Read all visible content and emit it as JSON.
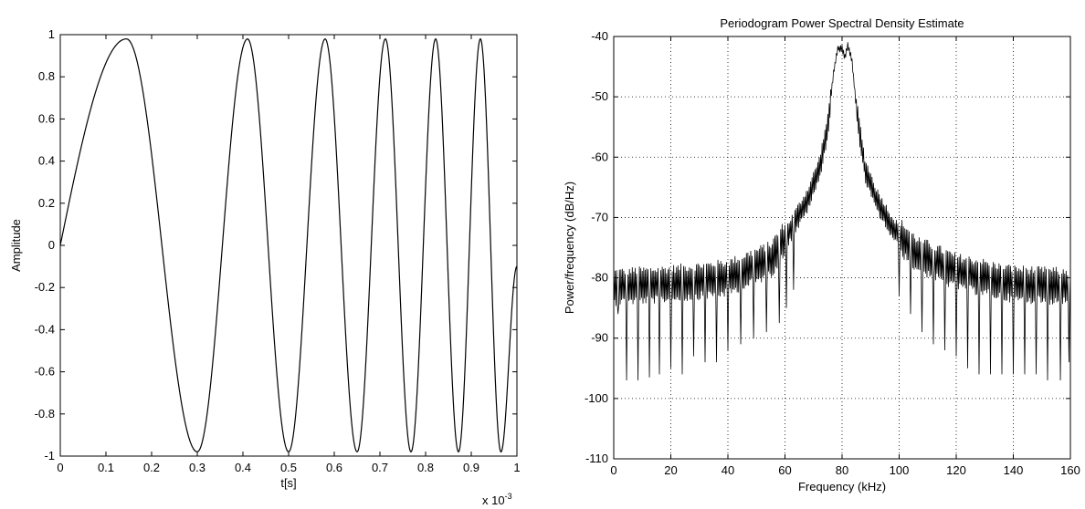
{
  "chart_data": [
    {
      "type": "line",
      "title": "",
      "xlabel": "t[s]",
      "ylabel": "Amplitude",
      "x_exponent_label": "x 10",
      "x_exponent_power": "-3",
      "xlim": [
        0,
        1
      ],
      "ylim": [
        -1,
        1
      ],
      "grid": false,
      "xticks": [
        "0",
        "0.1",
        "0.2",
        "0.3",
        "0.4",
        "0.5",
        "0.6",
        "0.7",
        "0.8",
        "0.9",
        "1"
      ],
      "yticks": [
        "-1",
        "-0.8",
        "-0.6",
        "-0.4",
        "-0.2",
        "0",
        "0.2",
        "0.4",
        "0.6",
        "0.8",
        "1"
      ],
      "series": [
        {
          "signal": "chirp",
          "color": "#000000",
          "extrema": [
            {
              "t": 0.0,
              "y": 0.0
            },
            {
              "t": 0.145,
              "y": 0.98
            },
            {
              "t": 0.3,
              "y": -0.98
            },
            {
              "t": 0.41,
              "y": 0.98
            },
            {
              "t": 0.5,
              "y": -0.98
            },
            {
              "t": 0.58,
              "y": 0.98
            },
            {
              "t": 0.65,
              "y": -0.98
            },
            {
              "t": 0.712,
              "y": 0.98
            },
            {
              "t": 0.768,
              "y": -0.98
            },
            {
              "t": 0.822,
              "y": 0.98
            },
            {
              "t": 0.872,
              "y": -0.98
            },
            {
              "t": 0.92,
              "y": 0.98
            },
            {
              "t": 0.965,
              "y": -0.98
            },
            {
              "t": 1.0,
              "y": -0.1
            }
          ]
        }
      ]
    },
    {
      "type": "line",
      "title": "Periodogram Power Spectral Density Estimate",
      "xlabel": "Frequency (kHz)",
      "ylabel": "Power/frequency (dB/Hz)",
      "xlim": [
        0,
        160
      ],
      "ylim": [
        -110,
        -40
      ],
      "grid": true,
      "xticks": [
        "0",
        "20",
        "40",
        "60",
        "80",
        "100",
        "120",
        "140",
        "160"
      ],
      "yticks": [
        "-110",
        "-100",
        "-90",
        "-80",
        "-70",
        "-60",
        "-50",
        "-40"
      ],
      "series": [
        {
          "color": "#000000",
          "envelope": [
            {
              "f": 0,
              "db": -81.5
            },
            {
              "f": 20,
              "db": -81
            },
            {
              "f": 40,
              "db": -80
            },
            {
              "f": 55,
              "db": -77
            },
            {
              "f": 62,
              "db": -72
            },
            {
              "f": 68,
              "db": -67
            },
            {
              "f": 72,
              "db": -62
            },
            {
              "f": 75,
              "db": -55
            },
            {
              "f": 77,
              "db": -46
            },
            {
              "f": 78.5,
              "db": -42
            },
            {
              "f": 80,
              "db": -42
            },
            {
              "f": 81,
              "db": -43.5
            },
            {
              "f": 82,
              "db": -41.5
            },
            {
              "f": 83.5,
              "db": -44
            },
            {
              "f": 85,
              "db": -52
            },
            {
              "f": 88,
              "db": -62
            },
            {
              "f": 92,
              "db": -67
            },
            {
              "f": 98,
              "db": -72
            },
            {
              "f": 106,
              "db": -76
            },
            {
              "f": 120,
              "db": -79
            },
            {
              "f": 140,
              "db": -81
            },
            {
              "f": 160,
              "db": -81.5
            }
          ],
          "notches": [
            {
              "f": 1.5,
              "db": -86
            },
            {
              "f": 4.5,
              "db": -97
            },
            {
              "f": 8.5,
              "db": -97
            },
            {
              "f": 12.5,
              "db": -96.5
            },
            {
              "f": 16,
              "db": -96
            },
            {
              "f": 20,
              "db": -95
            },
            {
              "f": 24,
              "db": -96
            },
            {
              "f": 28,
              "db": -93
            },
            {
              "f": 32,
              "db": -94
            },
            {
              "f": 36,
              "db": -94
            },
            {
              "f": 40,
              "db": -92
            },
            {
              "f": 44.5,
              "db": -91
            },
            {
              "f": 49,
              "db": -90
            },
            {
              "f": 53.5,
              "db": -89
            },
            {
              "f": 58,
              "db": -87.5
            },
            {
              "f": 60.5,
              "db": -85
            },
            {
              "f": 63,
              "db": -82
            },
            {
              "f": 100,
              "db": -83
            },
            {
              "f": 104,
              "db": -86
            },
            {
              "f": 108,
              "db": -89
            },
            {
              "f": 112,
              "db": -91
            },
            {
              "f": 116,
              "db": -92
            },
            {
              "f": 120,
              "db": -93
            },
            {
              "f": 124,
              "db": -95
            },
            {
              "f": 128,
              "db": -96
            },
            {
              "f": 132,
              "db": -96
            },
            {
              "f": 136,
              "db": -96
            },
            {
              "f": 140,
              "db": -96
            },
            {
              "f": 144,
              "db": -96
            },
            {
              "f": 148,
              "db": -96
            },
            {
              "f": 152,
              "db": -97
            },
            {
              "f": 156.5,
              "db": -97
            },
            {
              "f": 159.5,
              "db": -94
            }
          ]
        }
      ]
    }
  ]
}
